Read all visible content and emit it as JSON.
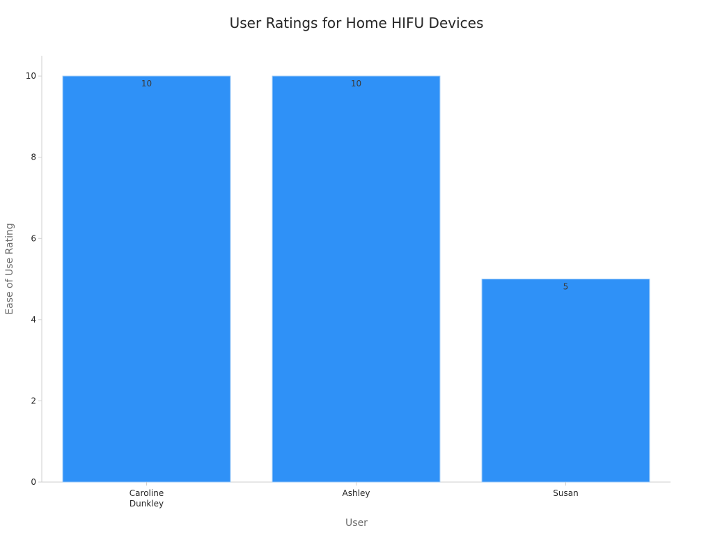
{
  "chart_data": {
    "type": "bar",
    "title": "User Ratings for Home HIFU Devices",
    "xlabel": "User",
    "ylabel": "Ease of Use Rating",
    "categories": [
      [
        "Caroline",
        "Dunkley"
      ],
      [
        "Ashley"
      ],
      [
        "Susan"
      ]
    ],
    "values": [
      10,
      10,
      5
    ],
    "data_labels": [
      "10",
      "10",
      "5"
    ],
    "yticks": [
      0,
      2,
      4,
      6,
      8,
      10
    ],
    "ylim": [
      0,
      10.5
    ],
    "grid": false,
    "legend": "none",
    "colors": {
      "bar_fill": "#2f91f7",
      "bar_edge": "#9fcbf7",
      "axis": "#cfcfcf",
      "title": "#262626",
      "axis_label": "#6b6b6b",
      "tick_label": "#262626",
      "data_label": "#3a3a3a"
    }
  }
}
